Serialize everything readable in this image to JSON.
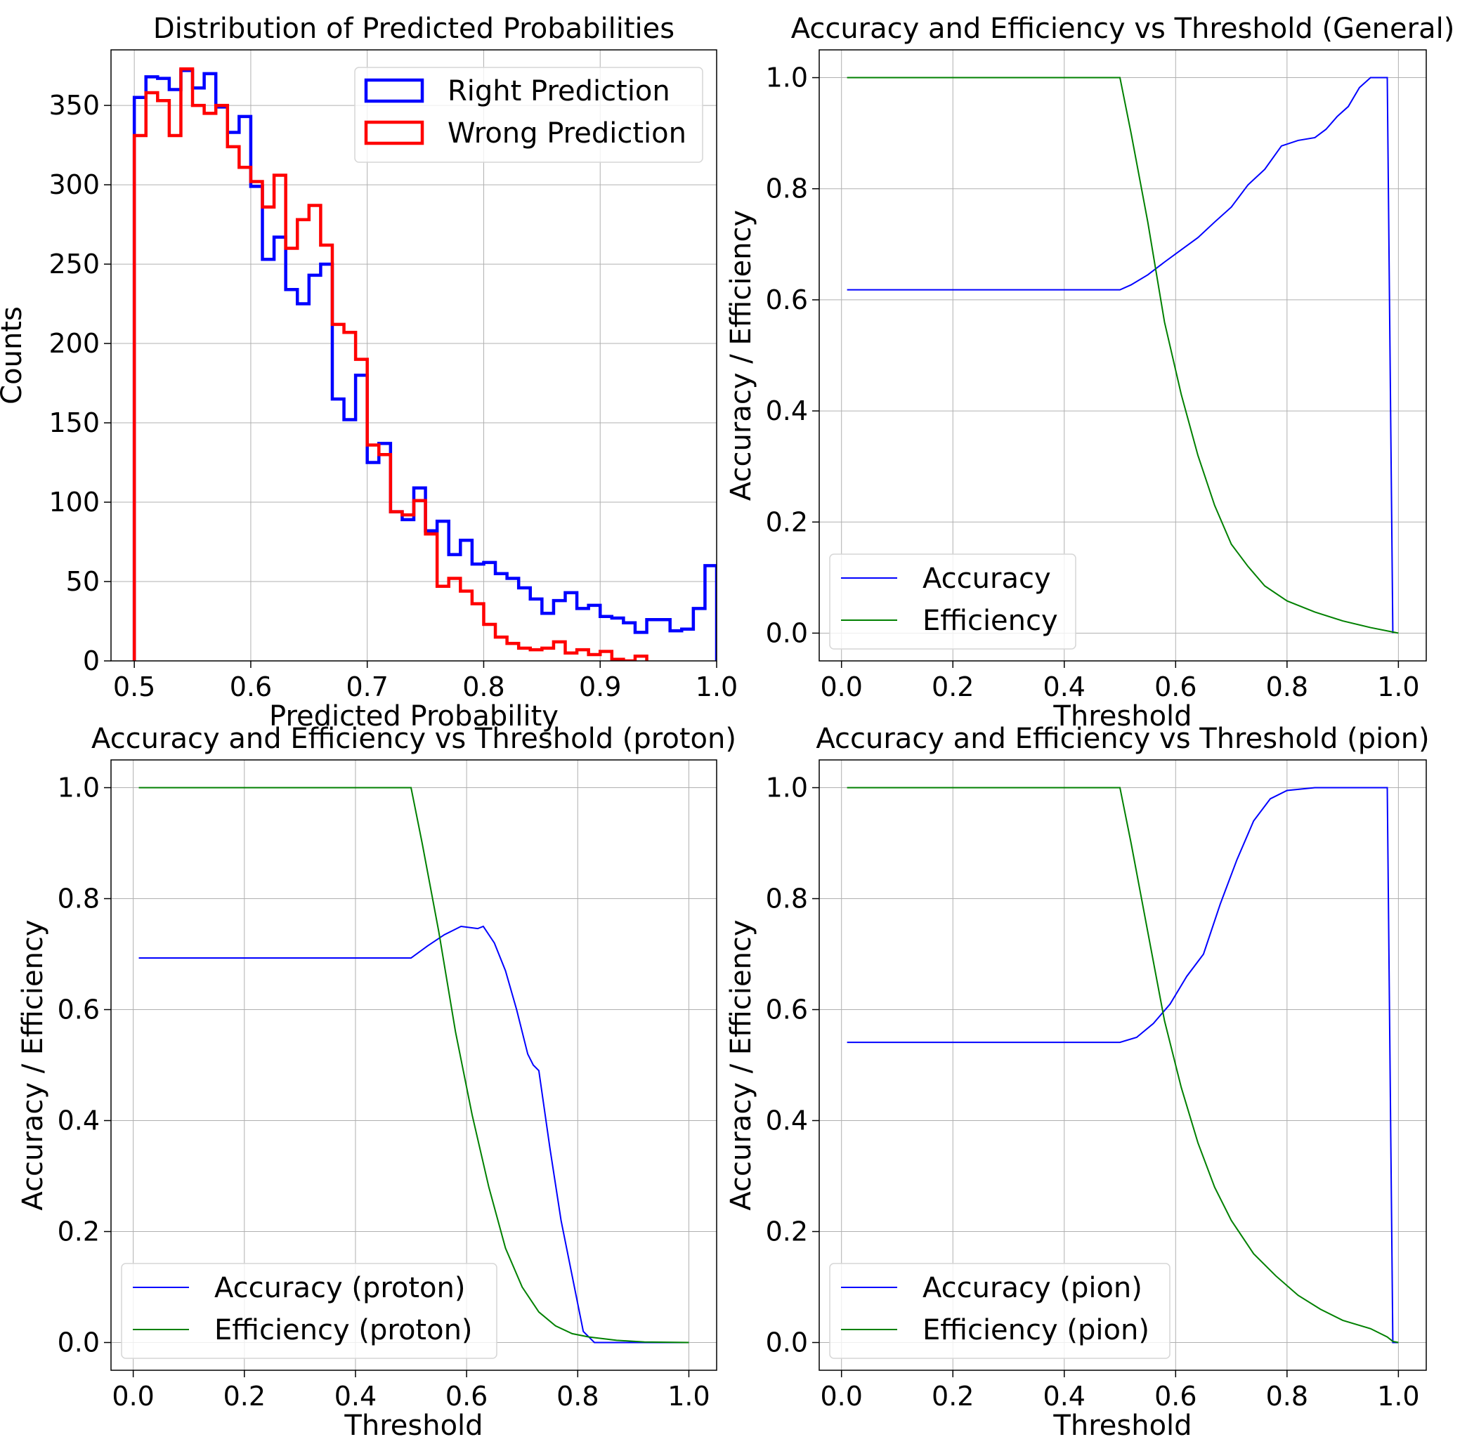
{
  "chart_data": [
    {
      "type": "histogram",
      "title": "Distribution of Predicted Probabilities",
      "xlabel": "Predicted Probability",
      "ylabel": "Counts",
      "xlim": [
        0.48,
        1.0
      ],
      "ylim": [
        0,
        385
      ],
      "xticks": [
        0.5,
        0.6,
        0.7,
        0.8,
        0.9,
        1.0
      ],
      "xtick_labels": [
        "0.5",
        "0.6",
        "0.7",
        "0.8",
        "0.9",
        "1.0"
      ],
      "yticks": [
        0,
        50,
        100,
        150,
        200,
        250,
        300,
        350
      ],
      "ytick_labels": [
        "0",
        "50",
        "100",
        "150",
        "200",
        "250",
        "300",
        "350"
      ],
      "grid": true,
      "legend_position": "top-right",
      "series": [
        {
          "name": "Right Prediction",
          "color": "#0000ff",
          "bin_start": 0.5,
          "bin_width": 0.01,
          "values": [
            355,
            368,
            367,
            360,
            372,
            361,
            370,
            349,
            333,
            343,
            299,
            253,
            267,
            234,
            225,
            243,
            250,
            165,
            152,
            180,
            125,
            137,
            94,
            89,
            109,
            82,
            88,
            67,
            76,
            61,
            62,
            55,
            52,
            46,
            39,
            30,
            38,
            43,
            33,
            35,
            28,
            27,
            24,
            18,
            26,
            26,
            19,
            20,
            33,
            60
          ]
        },
        {
          "name": "Wrong Prediction",
          "color": "#ff0000",
          "bin_start": 0.5,
          "bin_width": 0.01,
          "values": [
            331,
            358,
            353,
            331,
            373,
            350,
            345,
            350,
            324,
            311,
            302,
            286,
            306,
            260,
            278,
            287,
            262,
            212,
            207,
            190,
            136,
            130,
            94,
            92,
            101,
            80,
            47,
            52,
            44,
            36,
            23,
            15,
            11,
            8,
            7,
            8,
            12,
            5,
            7,
            4,
            6,
            1,
            0,
            3
          ]
        }
      ]
    },
    {
      "type": "line",
      "title": "Accuracy and Efficiency vs Threshold (General)",
      "xlabel": "Threshold",
      "ylabel": "Accuracy / Efficiency",
      "xlim": [
        -0.04,
        1.05
      ],
      "ylim": [
        -0.05,
        1.05
      ],
      "xticks": [
        0.0,
        0.2,
        0.4,
        0.6,
        0.8,
        1.0
      ],
      "xtick_labels": [
        "0.0",
        "0.2",
        "0.4",
        "0.6",
        "0.8",
        "1.0"
      ],
      "yticks": [
        0.0,
        0.2,
        0.4,
        0.6,
        0.8,
        1.0
      ],
      "ytick_labels": [
        "0.0",
        "0.2",
        "0.4",
        "0.6",
        "0.8",
        "1.0"
      ],
      "grid": true,
      "legend_position": "bottom-left",
      "series": [
        {
          "name": "Accuracy",
          "color": "#0000ff",
          "points": [
            [
              0.01,
              0.618
            ],
            [
              0.5,
              0.618
            ],
            [
              0.52,
              0.627
            ],
            [
              0.55,
              0.645
            ],
            [
              0.58,
              0.668
            ],
            [
              0.61,
              0.69
            ],
            [
              0.64,
              0.712
            ],
            [
              0.67,
              0.74
            ],
            [
              0.7,
              0.767
            ],
            [
              0.73,
              0.807
            ],
            [
              0.76,
              0.835
            ],
            [
              0.79,
              0.877
            ],
            [
              0.82,
              0.887
            ],
            [
              0.85,
              0.892
            ],
            [
              0.87,
              0.907
            ],
            [
              0.89,
              0.93
            ],
            [
              0.91,
              0.948
            ],
            [
              0.93,
              0.982
            ],
            [
              0.95,
              1.0
            ],
            [
              0.98,
              1.0
            ],
            [
              0.99,
              0.0
            ]
          ]
        },
        {
          "name": "Efficiency",
          "color": "#008000",
          "points": [
            [
              0.01,
              1.0
            ],
            [
              0.5,
              1.0
            ],
            [
              0.52,
              0.9
            ],
            [
              0.55,
              0.74
            ],
            [
              0.58,
              0.56
            ],
            [
              0.61,
              0.43
            ],
            [
              0.64,
              0.32
            ],
            [
              0.67,
              0.23
            ],
            [
              0.7,
              0.16
            ],
            [
              0.73,
              0.12
            ],
            [
              0.76,
              0.085
            ],
            [
              0.8,
              0.058
            ],
            [
              0.85,
              0.038
            ],
            [
              0.9,
              0.022
            ],
            [
              0.95,
              0.01
            ],
            [
              0.99,
              0.002
            ],
            [
              1.0,
              0.0
            ]
          ]
        }
      ]
    },
    {
      "type": "line",
      "title": "Accuracy and Efficiency vs Threshold (proton)",
      "xlabel": "Threshold",
      "ylabel": "Accuracy / Efficiency",
      "xlim": [
        -0.04,
        1.05
      ],
      "ylim": [
        -0.05,
        1.05
      ],
      "xticks": [
        0.0,
        0.2,
        0.4,
        0.6,
        0.8,
        1.0
      ],
      "xtick_labels": [
        "0.0",
        "0.2",
        "0.4",
        "0.6",
        "0.8",
        "1.0"
      ],
      "yticks": [
        0.0,
        0.2,
        0.4,
        0.6,
        0.8,
        1.0
      ],
      "ytick_labels": [
        "0.0",
        "0.2",
        "0.4",
        "0.6",
        "0.8",
        "1.0"
      ],
      "grid": true,
      "legend_position": "bottom-left",
      "series": [
        {
          "name": "Accuracy (proton)",
          "color": "#0000ff",
          "points": [
            [
              0.01,
              0.693
            ],
            [
              0.5,
              0.693
            ],
            [
              0.53,
              0.715
            ],
            [
              0.56,
              0.735
            ],
            [
              0.59,
              0.75
            ],
            [
              0.62,
              0.746
            ],
            [
              0.63,
              0.75
            ],
            [
              0.65,
              0.72
            ],
            [
              0.67,
              0.67
            ],
            [
              0.69,
              0.6
            ],
            [
              0.71,
              0.52
            ],
            [
              0.72,
              0.5
            ],
            [
              0.73,
              0.49
            ],
            [
              0.75,
              0.35
            ],
            [
              0.77,
              0.22
            ],
            [
              0.79,
              0.12
            ],
            [
              0.81,
              0.02
            ],
            [
              0.83,
              0.0
            ],
            [
              0.9,
              0.0
            ],
            [
              1.0,
              0.0
            ]
          ]
        },
        {
          "name": "Efficiency (proton)",
          "color": "#008000",
          "points": [
            [
              0.01,
              1.0
            ],
            [
              0.5,
              1.0
            ],
            [
              0.52,
              0.9
            ],
            [
              0.55,
              0.74
            ],
            [
              0.58,
              0.56
            ],
            [
              0.61,
              0.41
            ],
            [
              0.64,
              0.28
            ],
            [
              0.67,
              0.17
            ],
            [
              0.7,
              0.1
            ],
            [
              0.73,
              0.055
            ],
            [
              0.76,
              0.03
            ],
            [
              0.79,
              0.016
            ],
            [
              0.82,
              0.01
            ],
            [
              0.87,
              0.004
            ],
            [
              0.92,
              0.001
            ],
            [
              1.0,
              0.0
            ]
          ]
        }
      ]
    },
    {
      "type": "line",
      "title": "Accuracy and Efficiency vs Threshold (pion)",
      "xlabel": "Threshold",
      "ylabel": "Accuracy / Efficiency",
      "xlim": [
        -0.04,
        1.05
      ],
      "ylim": [
        -0.05,
        1.05
      ],
      "xticks": [
        0.0,
        0.2,
        0.4,
        0.6,
        0.8,
        1.0
      ],
      "xtick_labels": [
        "0.0",
        "0.2",
        "0.4",
        "0.6",
        "0.8",
        "1.0"
      ],
      "yticks": [
        0.0,
        0.2,
        0.4,
        0.6,
        0.8,
        1.0
      ],
      "ytick_labels": [
        "0.0",
        "0.2",
        "0.4",
        "0.6",
        "0.8",
        "1.0"
      ],
      "grid": true,
      "legend_position": "bottom-left",
      "series": [
        {
          "name": "Accuracy (pion)",
          "color": "#0000ff",
          "points": [
            [
              0.01,
              0.541
            ],
            [
              0.5,
              0.541
            ],
            [
              0.53,
              0.55
            ],
            [
              0.56,
              0.575
            ],
            [
              0.59,
              0.61
            ],
            [
              0.62,
              0.66
            ],
            [
              0.65,
              0.7
            ],
            [
              0.68,
              0.79
            ],
            [
              0.71,
              0.87
            ],
            [
              0.74,
              0.94
            ],
            [
              0.77,
              0.98
            ],
            [
              0.8,
              0.995
            ],
            [
              0.85,
              1.0
            ],
            [
              0.95,
              1.0
            ],
            [
              0.98,
              1.0
            ],
            [
              0.99,
              0.0
            ],
            [
              1.0,
              0.0
            ]
          ]
        },
        {
          "name": "Efficiency (pion)",
          "color": "#008000",
          "points": [
            [
              0.01,
              1.0
            ],
            [
              0.5,
              1.0
            ],
            [
              0.52,
              0.9
            ],
            [
              0.55,
              0.74
            ],
            [
              0.58,
              0.58
            ],
            [
              0.61,
              0.46
            ],
            [
              0.64,
              0.36
            ],
            [
              0.67,
              0.28
            ],
            [
              0.7,
              0.22
            ],
            [
              0.74,
              0.16
            ],
            [
              0.78,
              0.12
            ],
            [
              0.82,
              0.085
            ],
            [
              0.86,
              0.06
            ],
            [
              0.9,
              0.04
            ],
            [
              0.95,
              0.025
            ],
            [
              0.98,
              0.01
            ],
            [
              0.99,
              0.002
            ],
            [
              1.0,
              0.0
            ]
          ]
        }
      ]
    }
  ]
}
